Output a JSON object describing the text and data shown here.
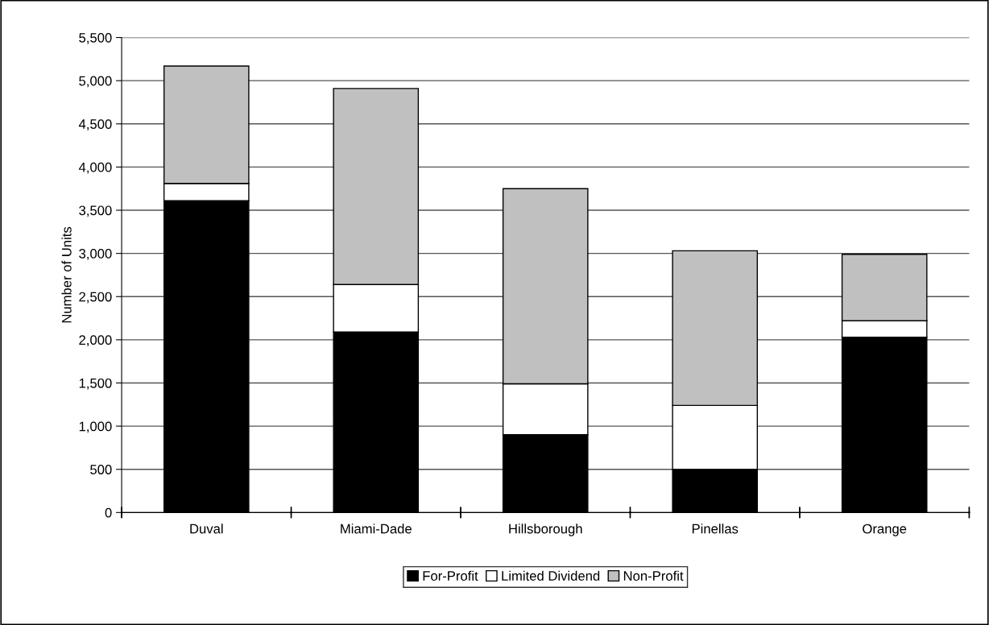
{
  "chart_data": {
    "type": "bar",
    "stacked": true,
    "ylabel": "Number of Units",
    "categories": [
      "Duval",
      "Miami-Dade",
      "Hillsborough",
      "Pinellas",
      "Orange"
    ],
    "series": [
      {
        "name": "For-Profit",
        "color": "#000000",
        "values": [
          3610,
          2090,
          900,
          500,
          2030
        ]
      },
      {
        "name": "Limited Dividend",
        "color": "#ffffff",
        "values": [
          200,
          550,
          590,
          740,
          190
        ]
      },
      {
        "name": "Non-Profit",
        "color": "#c0c0c0",
        "values": [
          1360,
          2270,
          2260,
          1790,
          770
        ]
      }
    ],
    "ylim": [
      0,
      5500
    ],
    "yticks": [
      0,
      {
        "value": 500,
        "label": "500"
      },
      {
        "value": 1000,
        "label": "1,000"
      },
      {
        "value": 1500,
        "label": "1,500"
      },
      {
        "value": 2000,
        "label": "2,000"
      },
      {
        "value": 2500,
        "label": "2,500"
      },
      {
        "value": 3000,
        "label": "3,000"
      },
      {
        "value": 3500,
        "label": "3,500"
      },
      {
        "value": 4000,
        "label": "4,000"
      },
      {
        "value": 4500,
        "label": "4,500"
      },
      {
        "value": 5000,
        "label": "5,000"
      },
      {
        "value": 5500,
        "label": "5,500"
      }
    ],
    "grid": "y",
    "legend": "bottom"
  }
}
